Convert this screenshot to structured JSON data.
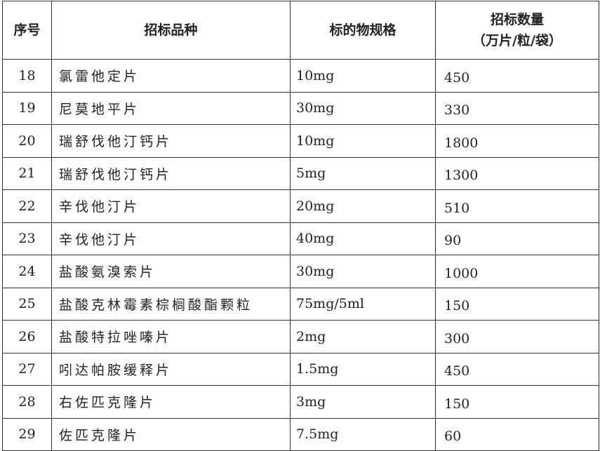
{
  "headers": {
    "index": "序号",
    "variety": "招标品种",
    "spec": "标的物规格",
    "quantity_line1": "招标数量",
    "quantity_line2": "（万片/粒/袋）"
  },
  "rows": [
    {
      "no": "18",
      "name": "氯雷他定片",
      "spec": "10mg",
      "qty": "450"
    },
    {
      "no": "19",
      "name": "尼莫地平片",
      "spec": "30mg",
      "qty": "330"
    },
    {
      "no": "20",
      "name": "瑞舒伐他汀钙片",
      "spec": "10mg",
      "qty": "1800"
    },
    {
      "no": "21",
      "name": "瑞舒伐他汀钙片",
      "spec": "5mg",
      "qty": "1300"
    },
    {
      "no": "22",
      "name": "辛伐他汀片",
      "spec": "20mg",
      "qty": "510"
    },
    {
      "no": "23",
      "name": "辛伐他汀片",
      "spec": "40mg",
      "qty": "90"
    },
    {
      "no": "24",
      "name": "盐酸氨溴索片",
      "spec": "30mg",
      "qty": "1000"
    },
    {
      "no": "25",
      "name": "盐酸克林霉素棕榈酸酯颗粒",
      "spec": "75mg/5ml",
      "qty": "150"
    },
    {
      "no": "26",
      "name": "盐酸特拉唑嗪片",
      "spec": "2mg",
      "qty": "300"
    },
    {
      "no": "27",
      "name": "吲达帕胺缓释片",
      "spec": "1.5mg",
      "qty": "450"
    },
    {
      "no": "28",
      "name": "右佐匹克隆片",
      "spec": "3mg",
      "qty": "150"
    },
    {
      "no": "29",
      "name": "佐匹克隆片",
      "spec": "7.5mg",
      "qty": "60"
    }
  ]
}
